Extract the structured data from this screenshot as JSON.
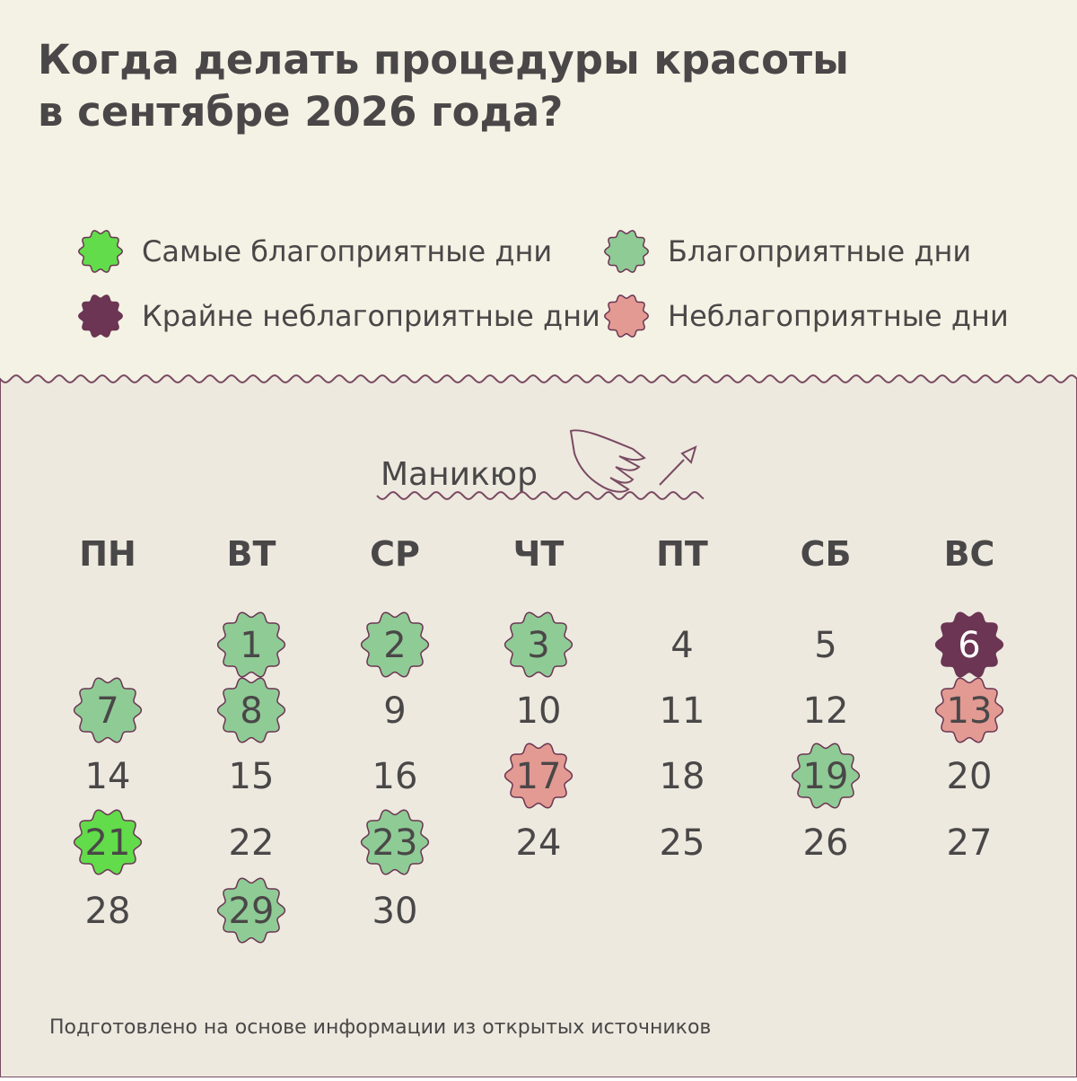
{
  "header": {
    "title_lines": [
      "Когда делать процедуры красоты",
      "в сентябре 2026 года?"
    ]
  },
  "legend": [
    {
      "label": "Самые благоприятные дни",
      "color": "#62dc4a"
    },
    {
      "label": "Благоприятные дни",
      "color": "#8fcb95"
    },
    {
      "label": "Крайне неблагоприятные дни",
      "color": "#6b3553"
    },
    {
      "label": "Неблагоприятные дни",
      "color": "#e29a92"
    }
  ],
  "calendar": {
    "title": "Маникюр",
    "weekdays": [
      "ПН",
      "ВТ",
      "СР",
      "ЧТ",
      "ПТ",
      "СБ",
      "ВС"
    ],
    "weeks": [
      [
        null,
        {
          "day": 1,
          "color": "#8fcb95"
        },
        {
          "day": 2,
          "color": "#8fcb95"
        },
        {
          "day": 3,
          "color": "#8fcb95"
        },
        {
          "day": 4
        },
        {
          "day": 5
        },
        {
          "day": 6,
          "color": "#6b3553"
        }
      ],
      [
        {
          "day": 7,
          "color": "#8fcb95"
        },
        {
          "day": 8,
          "color": "#8fcb95"
        },
        {
          "day": 9
        },
        {
          "day": 10
        },
        {
          "day": 11
        },
        {
          "day": 12
        },
        {
          "day": 13,
          "color": "#e29a92"
        }
      ],
      [
        {
          "day": 14
        },
        {
          "day": 15
        },
        {
          "day": 16
        },
        {
          "day": 17,
          "color": "#e29a92"
        },
        {
          "day": 18
        },
        {
          "day": 19,
          "color": "#8fcb95"
        },
        {
          "day": 20
        }
      ],
      [
        {
          "day": 21,
          "color": "#62dc4a"
        },
        {
          "day": 22
        },
        {
          "day": 23,
          "color": "#8fcb95"
        },
        {
          "day": 24
        },
        {
          "day": 25
        },
        {
          "day": 26
        },
        {
          "day": 27
        }
      ],
      [
        {
          "day": 28
        },
        {
          "day": 29,
          "color": "#8fcb95"
        },
        {
          "day": 30
        },
        null,
        null,
        null,
        null
      ]
    ]
  },
  "footer": "Подготовлено на основе информации из открытых источников"
}
